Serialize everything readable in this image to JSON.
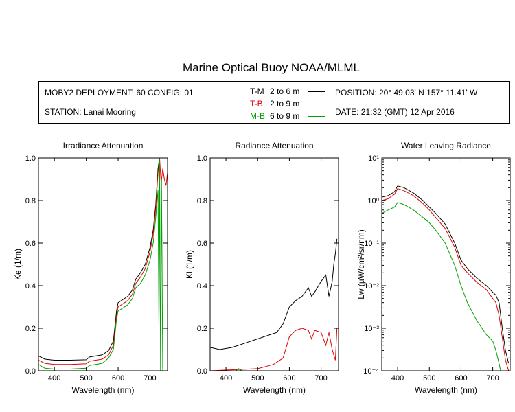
{
  "header": {
    "title": "Marine Optical Buoy NOAA/MLML",
    "deployment": "MOBY2 DEPLOYMENT: 60 CONFIG: 01",
    "station": "STATION: Lanai Mooring",
    "position": "POSITION: 20° 49.03' N   157° 11.41' W",
    "date": "DATE: 21:32 (GMT) 12 Apr 2016"
  },
  "legend": [
    {
      "code": "T-M",
      "depths": "2 to 6  m",
      "color": "#000000"
    },
    {
      "code": "T-B",
      "depths": "2 to 9  m",
      "color": "#e00000"
    },
    {
      "code": "M-B",
      "depths": "6 to 9  m",
      "color": "#00a000"
    }
  ],
  "chart_data": [
    {
      "type": "line",
      "title": "Irradiance Attenuation",
      "xlabel": "Wavelength (nm)",
      "ylabel": "Ke  (1/m)",
      "xlim": [
        350,
        755
      ],
      "ylim": [
        0,
        1.0
      ],
      "xticks": [
        400,
        500,
        600,
        700
      ],
      "yticks": [
        0.0,
        0.2,
        0.4,
        0.6,
        0.8,
        1.0
      ],
      "ytick_labels": [
        "0.0",
        "0.2",
        "0.4",
        "0.6",
        "0.8",
        "1.0"
      ],
      "series": [
        {
          "name": "T-M",
          "color": "#000000",
          "x": [
            350,
            370,
            400,
            450,
            500,
            510,
            550,
            570,
            585,
            595,
            600,
            610,
            630,
            645,
            655,
            670,
            685,
            700,
            710,
            718,
            725,
            730
          ],
          "y": [
            0.07,
            0.055,
            0.05,
            0.05,
            0.052,
            0.065,
            0.075,
            0.095,
            0.14,
            0.28,
            0.32,
            0.33,
            0.35,
            0.38,
            0.43,
            0.46,
            0.5,
            0.58,
            0.66,
            0.78,
            0.95,
            1.0
          ]
        },
        {
          "name": "T-B",
          "color": "#e00000",
          "x": [
            350,
            370,
            400,
            450,
            500,
            510,
            550,
            570,
            585,
            595,
            600,
            610,
            630,
            645,
            655,
            670,
            685,
            700,
            710,
            718,
            725,
            730,
            735,
            740,
            745,
            750,
            755
          ],
          "y": [
            0.05,
            0.035,
            0.03,
            0.03,
            0.033,
            0.045,
            0.055,
            0.075,
            0.12,
            0.26,
            0.3,
            0.31,
            0.33,
            0.36,
            0.41,
            0.44,
            0.48,
            0.56,
            0.64,
            0.76,
            0.93,
            1.0,
            0.88,
            0.95,
            0.9,
            0.87,
            0.93
          ]
        },
        {
          "name": "M-B",
          "color": "#00a000",
          "x": [
            350,
            370,
            400,
            450,
            500,
            510,
            550,
            570,
            585,
            595,
            600,
            610,
            630,
            645,
            655,
            670,
            685,
            700,
            710,
            718,
            725,
            728,
            730,
            733,
            736,
            740
          ],
          "y": [
            0.03,
            0.012,
            0.008,
            0.008,
            0.012,
            0.025,
            0.035,
            0.06,
            0.1,
            0.24,
            0.28,
            0.29,
            0.31,
            0.34,
            0.39,
            0.41,
            0.45,
            0.52,
            0.6,
            0.72,
            0.85,
            0.2,
            1.0,
            0.0,
            0.9,
            0.0
          ]
        }
      ]
    },
    {
      "type": "line",
      "title": "Radiance Attenuation",
      "xlabel": "Wavelength (nm)",
      "ylabel": "Kl  (1/m)",
      "xlim": [
        350,
        755
      ],
      "ylim": [
        0,
        1.0
      ],
      "xticks": [
        400,
        500,
        600,
        700
      ],
      "yticks": [
        0.0,
        0.2,
        0.4,
        0.6,
        0.8,
        1.0
      ],
      "ytick_labels": [
        "0.0",
        "0.2",
        "0.4",
        "0.6",
        "0.8",
        "1.0"
      ],
      "series": [
        {
          "name": "T-M",
          "color": "#000000",
          "x": [
            350,
            380,
            420,
            460,
            500,
            520,
            560,
            580,
            595,
            600,
            620,
            640,
            650,
            660,
            670,
            680,
            700,
            715,
            725,
            735,
            740,
            745,
            750
          ],
          "y": [
            0.11,
            0.1,
            0.11,
            0.13,
            0.15,
            0.16,
            0.18,
            0.22,
            0.28,
            0.3,
            0.33,
            0.35,
            0.37,
            0.39,
            0.35,
            0.37,
            0.42,
            0.45,
            0.35,
            0.42,
            0.5,
            0.55,
            0.62
          ]
        },
        {
          "name": "T-B",
          "color": "#e00000",
          "x": [
            350,
            500,
            550,
            580,
            600,
            620,
            640,
            660,
            670,
            680,
            700,
            715,
            725,
            735,
            745,
            750
          ],
          "y": [
            0.0,
            0.01,
            0.03,
            0.06,
            0.16,
            0.19,
            0.2,
            0.19,
            0.15,
            0.19,
            0.18,
            0.12,
            0.18,
            0.1,
            0.05,
            0.2
          ]
        },
        {
          "name": "M-B",
          "color": "#00a000",
          "x": [
            430,
            440,
            450
          ],
          "y": [
            0.0,
            0.01,
            0.0
          ]
        }
      ]
    },
    {
      "type": "line",
      "title": "Water Leaving Radiance",
      "xlabel": "Wavelength (nm)",
      "ylabel": "Lw  (µW/cm²/sr/nm)",
      "scale": "log",
      "xlim": [
        350,
        755
      ],
      "ylim": [
        0.0001,
        10
      ],
      "xticks": [
        400,
        500,
        600,
        700
      ],
      "yticks": [
        0.0001,
        0.001,
        0.01,
        0.1,
        1,
        10
      ],
      "ytick_labels": [
        "10⁻⁴",
        "10⁻³",
        "10⁻²",
        "10⁻¹",
        "10⁰",
        "10¹"
      ],
      "series": [
        {
          "name": "T-M",
          "color": "#000000",
          "x": [
            350,
            370,
            390,
            400,
            420,
            450,
            480,
            500,
            520,
            550,
            580,
            600,
            620,
            650,
            680,
            700,
            710,
            720,
            730,
            740,
            750
          ],
          "y": [
            1.2,
            1.3,
            1.6,
            2.2,
            2.0,
            1.5,
            1.0,
            0.7,
            0.5,
            0.28,
            0.1,
            0.04,
            0.025,
            0.015,
            0.01,
            0.007,
            0.006,
            0.004,
            0.001,
            0.0003,
            0.00015
          ]
        },
        {
          "name": "T-B",
          "color": "#e00000",
          "x": [
            350,
            370,
            390,
            400,
            420,
            450,
            480,
            500,
            520,
            550,
            580,
            600,
            620,
            650,
            680,
            700,
            710,
            720,
            730,
            740,
            750
          ],
          "y": [
            1.0,
            1.1,
            1.4,
            1.9,
            1.7,
            1.3,
            0.85,
            0.6,
            0.4,
            0.22,
            0.08,
            0.03,
            0.02,
            0.012,
            0.008,
            0.005,
            0.004,
            0.002,
            0.0006,
            0.00018,
            0.0001
          ]
        },
        {
          "name": "M-B",
          "color": "#00a000",
          "x": [
            350,
            370,
            390,
            400,
            420,
            450,
            480,
            500,
            520,
            550,
            580,
            600,
            620,
            650,
            680,
            700,
            710,
            720,
            725
          ],
          "y": [
            0.5,
            0.6,
            0.7,
            0.9,
            0.8,
            0.6,
            0.4,
            0.3,
            0.2,
            0.1,
            0.03,
            0.01,
            0.004,
            0.0015,
            0.0007,
            0.0005,
            0.0003,
            0.00015,
            0.0001
          ]
        }
      ]
    }
  ]
}
